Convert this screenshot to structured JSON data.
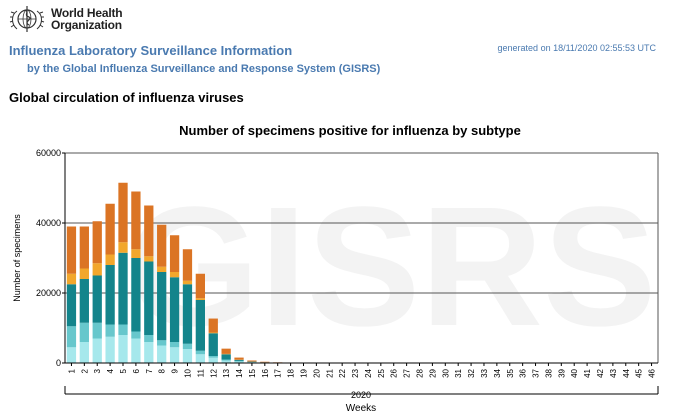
{
  "header": {
    "org_name_line1": "World Health",
    "org_name_line2": "Organization",
    "app_title": "Influenza Laboratory Surveillance Information",
    "app_subtitle": "by the Global Influenza Surveillance and Response System (GISRS)",
    "generated": "generated on 18/11/2020 02:55:53 UTC",
    "section_title": "Global circulation of influenza viruses"
  },
  "colors": {
    "brand_text": "#4a7ab0",
    "series": [
      "#a6e8ec",
      "#67c7cc",
      "#13848b",
      "#f2a72c",
      "#db7424"
    ],
    "watermark": "#f3f3f3",
    "grid": "#555555"
  },
  "chart_data": {
    "type": "bar",
    "stacked": true,
    "title": "Number of specimens positive for influenza by subtype",
    "xlabel": "Weeks",
    "ylabel": "Number of specimens",
    "year_label": "2020",
    "watermark": "GISRS",
    "ylim": [
      0,
      60000
    ],
    "yticks": [
      "0",
      "20000",
      "40000",
      "60000"
    ],
    "grid": true,
    "legend": "none",
    "categories": [
      "1",
      "2",
      "3",
      "4",
      "5",
      "6",
      "7",
      "8",
      "9",
      "10",
      "11",
      "12",
      "13",
      "14",
      "15",
      "16",
      "17",
      "18",
      "19",
      "20",
      "21",
      "22",
      "23",
      "24",
      "25",
      "26",
      "27",
      "28",
      "29",
      "30",
      "31",
      "32",
      "33",
      "34",
      "35",
      "36",
      "37",
      "38",
      "39",
      "40",
      "41",
      "42",
      "43",
      "44",
      "45",
      "46"
    ],
    "series": [
      {
        "values": [
          4500,
          6000,
          7000,
          7500,
          8000,
          7000,
          6000,
          5000,
          4500,
          4000,
          2500,
          1500,
          700,
          400,
          200,
          100,
          50,
          50,
          50,
          50,
          50,
          50,
          50,
          50,
          50,
          50,
          50,
          50,
          50,
          50,
          50,
          50,
          50,
          50,
          50,
          50,
          50,
          50,
          50,
          50,
          50,
          50,
          50,
          50,
          50,
          50
        ]
      },
      {
        "values": [
          6000,
          5500,
          4500,
          3500,
          3000,
          2000,
          2000,
          1500,
          1500,
          1500,
          1000,
          500,
          300,
          200,
          100,
          50,
          30,
          20,
          20,
          20,
          20,
          20,
          20,
          20,
          20,
          20,
          20,
          20,
          20,
          20,
          20,
          20,
          20,
          20,
          20,
          20,
          20,
          20,
          20,
          20,
          20,
          20,
          20,
          20,
          20,
          20
        ]
      },
      {
        "values": [
          12000,
          12500,
          13500,
          17000,
          20500,
          21000,
          21000,
          19500,
          18500,
          17000,
          14500,
          6500,
          1500,
          300,
          100,
          50,
          20,
          10,
          10,
          10,
          10,
          10,
          10,
          10,
          10,
          10,
          10,
          10,
          10,
          10,
          10,
          10,
          10,
          10,
          10,
          10,
          10,
          10,
          10,
          10,
          10,
          10,
          10,
          10,
          10,
          10
        ]
      },
      {
        "values": [
          3000,
          3000,
          3500,
          3000,
          3000,
          2500,
          1500,
          1500,
          1500,
          1000,
          500,
          200,
          100,
          50,
          20,
          10,
          10,
          10,
          10,
          10,
          10,
          10,
          10,
          10,
          10,
          10,
          10,
          10,
          10,
          10,
          10,
          10,
          10,
          10,
          10,
          10,
          10,
          10,
          10,
          10,
          10,
          10,
          10,
          10,
          10,
          10
        ]
      },
      {
        "values": [
          13500,
          12000,
          12000,
          14500,
          17000,
          16500,
          14500,
          12000,
          10500,
          9000,
          7000,
          4000,
          1500,
          600,
          300,
          150,
          80,
          50,
          40,
          40,
          40,
          40,
          40,
          40,
          40,
          40,
          40,
          40,
          40,
          40,
          40,
          40,
          40,
          40,
          40,
          40,
          40,
          40,
          40,
          40,
          40,
          40,
          40,
          40,
          40,
          40
        ]
      }
    ]
  }
}
